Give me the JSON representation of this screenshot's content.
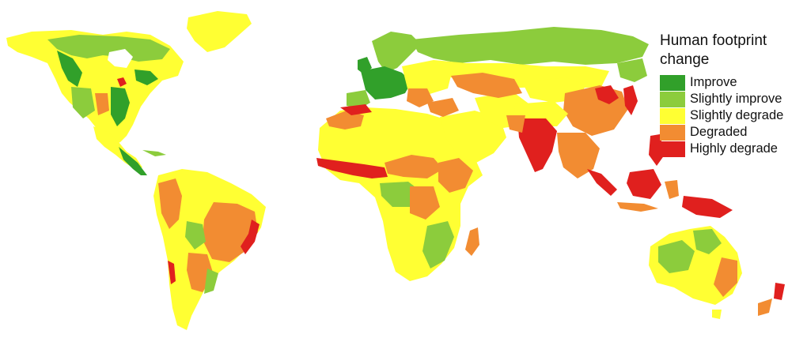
{
  "map": {
    "palette": {
      "improve": "#31a02a",
      "slightly_improve": "#8ccc3c",
      "slightly_degrade": "#ffff33",
      "degraded": "#f28c32",
      "highly_degrade": "#e0201e"
    }
  },
  "legend": {
    "title": "Human footprint change",
    "items": [
      {
        "label": "Improve",
        "color": "#31a02a"
      },
      {
        "label": "Slightly improve",
        "color": "#8ccc3c"
      },
      {
        "label": "Slightly degrade",
        "color": "#ffff33"
      },
      {
        "label": "Degraded",
        "color": "#f28c32"
      },
      {
        "label": "Highly degrade",
        "color": "#e0201e"
      }
    ]
  }
}
